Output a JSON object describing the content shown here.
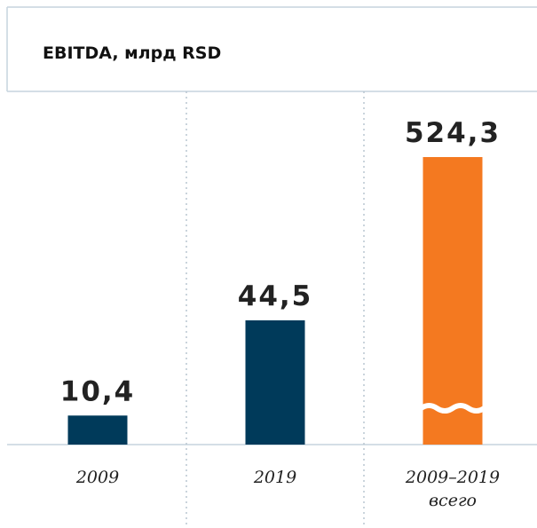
{
  "chart_data": {
    "type": "bar",
    "title": "EBITDA, млрд RSD",
    "categories": [
      "2009",
      "2019",
      "2009–2019 всего"
    ],
    "values": [
      10.4,
      44.5,
      524.3
    ],
    "value_labels": [
      "10,4",
      "44,5",
      "524,3"
    ],
    "colors": [
      "#003a5a",
      "#003a5a",
      "#f47920"
    ],
    "axis_break": [
      false,
      false,
      true
    ]
  }
}
